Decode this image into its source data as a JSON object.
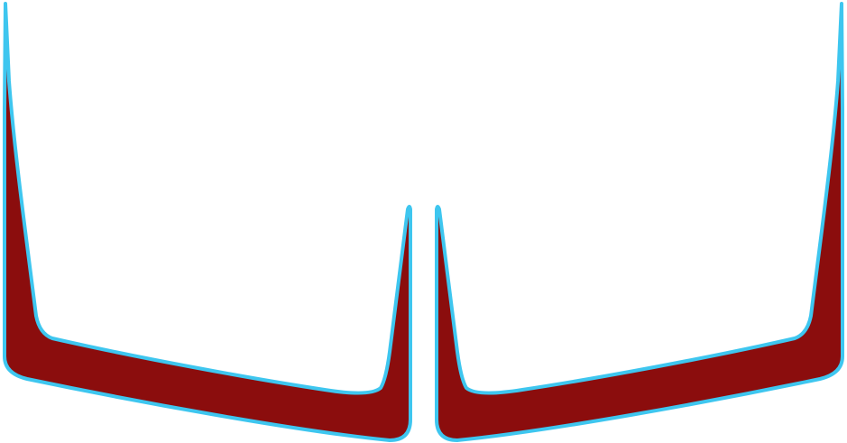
{
  "colors": {
    "background": "#ffffff",
    "fill": "#8b0d0d",
    "outline": "#3ec6ef"
  },
  "shapes": [
    {
      "name": "left-shape"
    },
    {
      "name": "right-shape"
    }
  ]
}
